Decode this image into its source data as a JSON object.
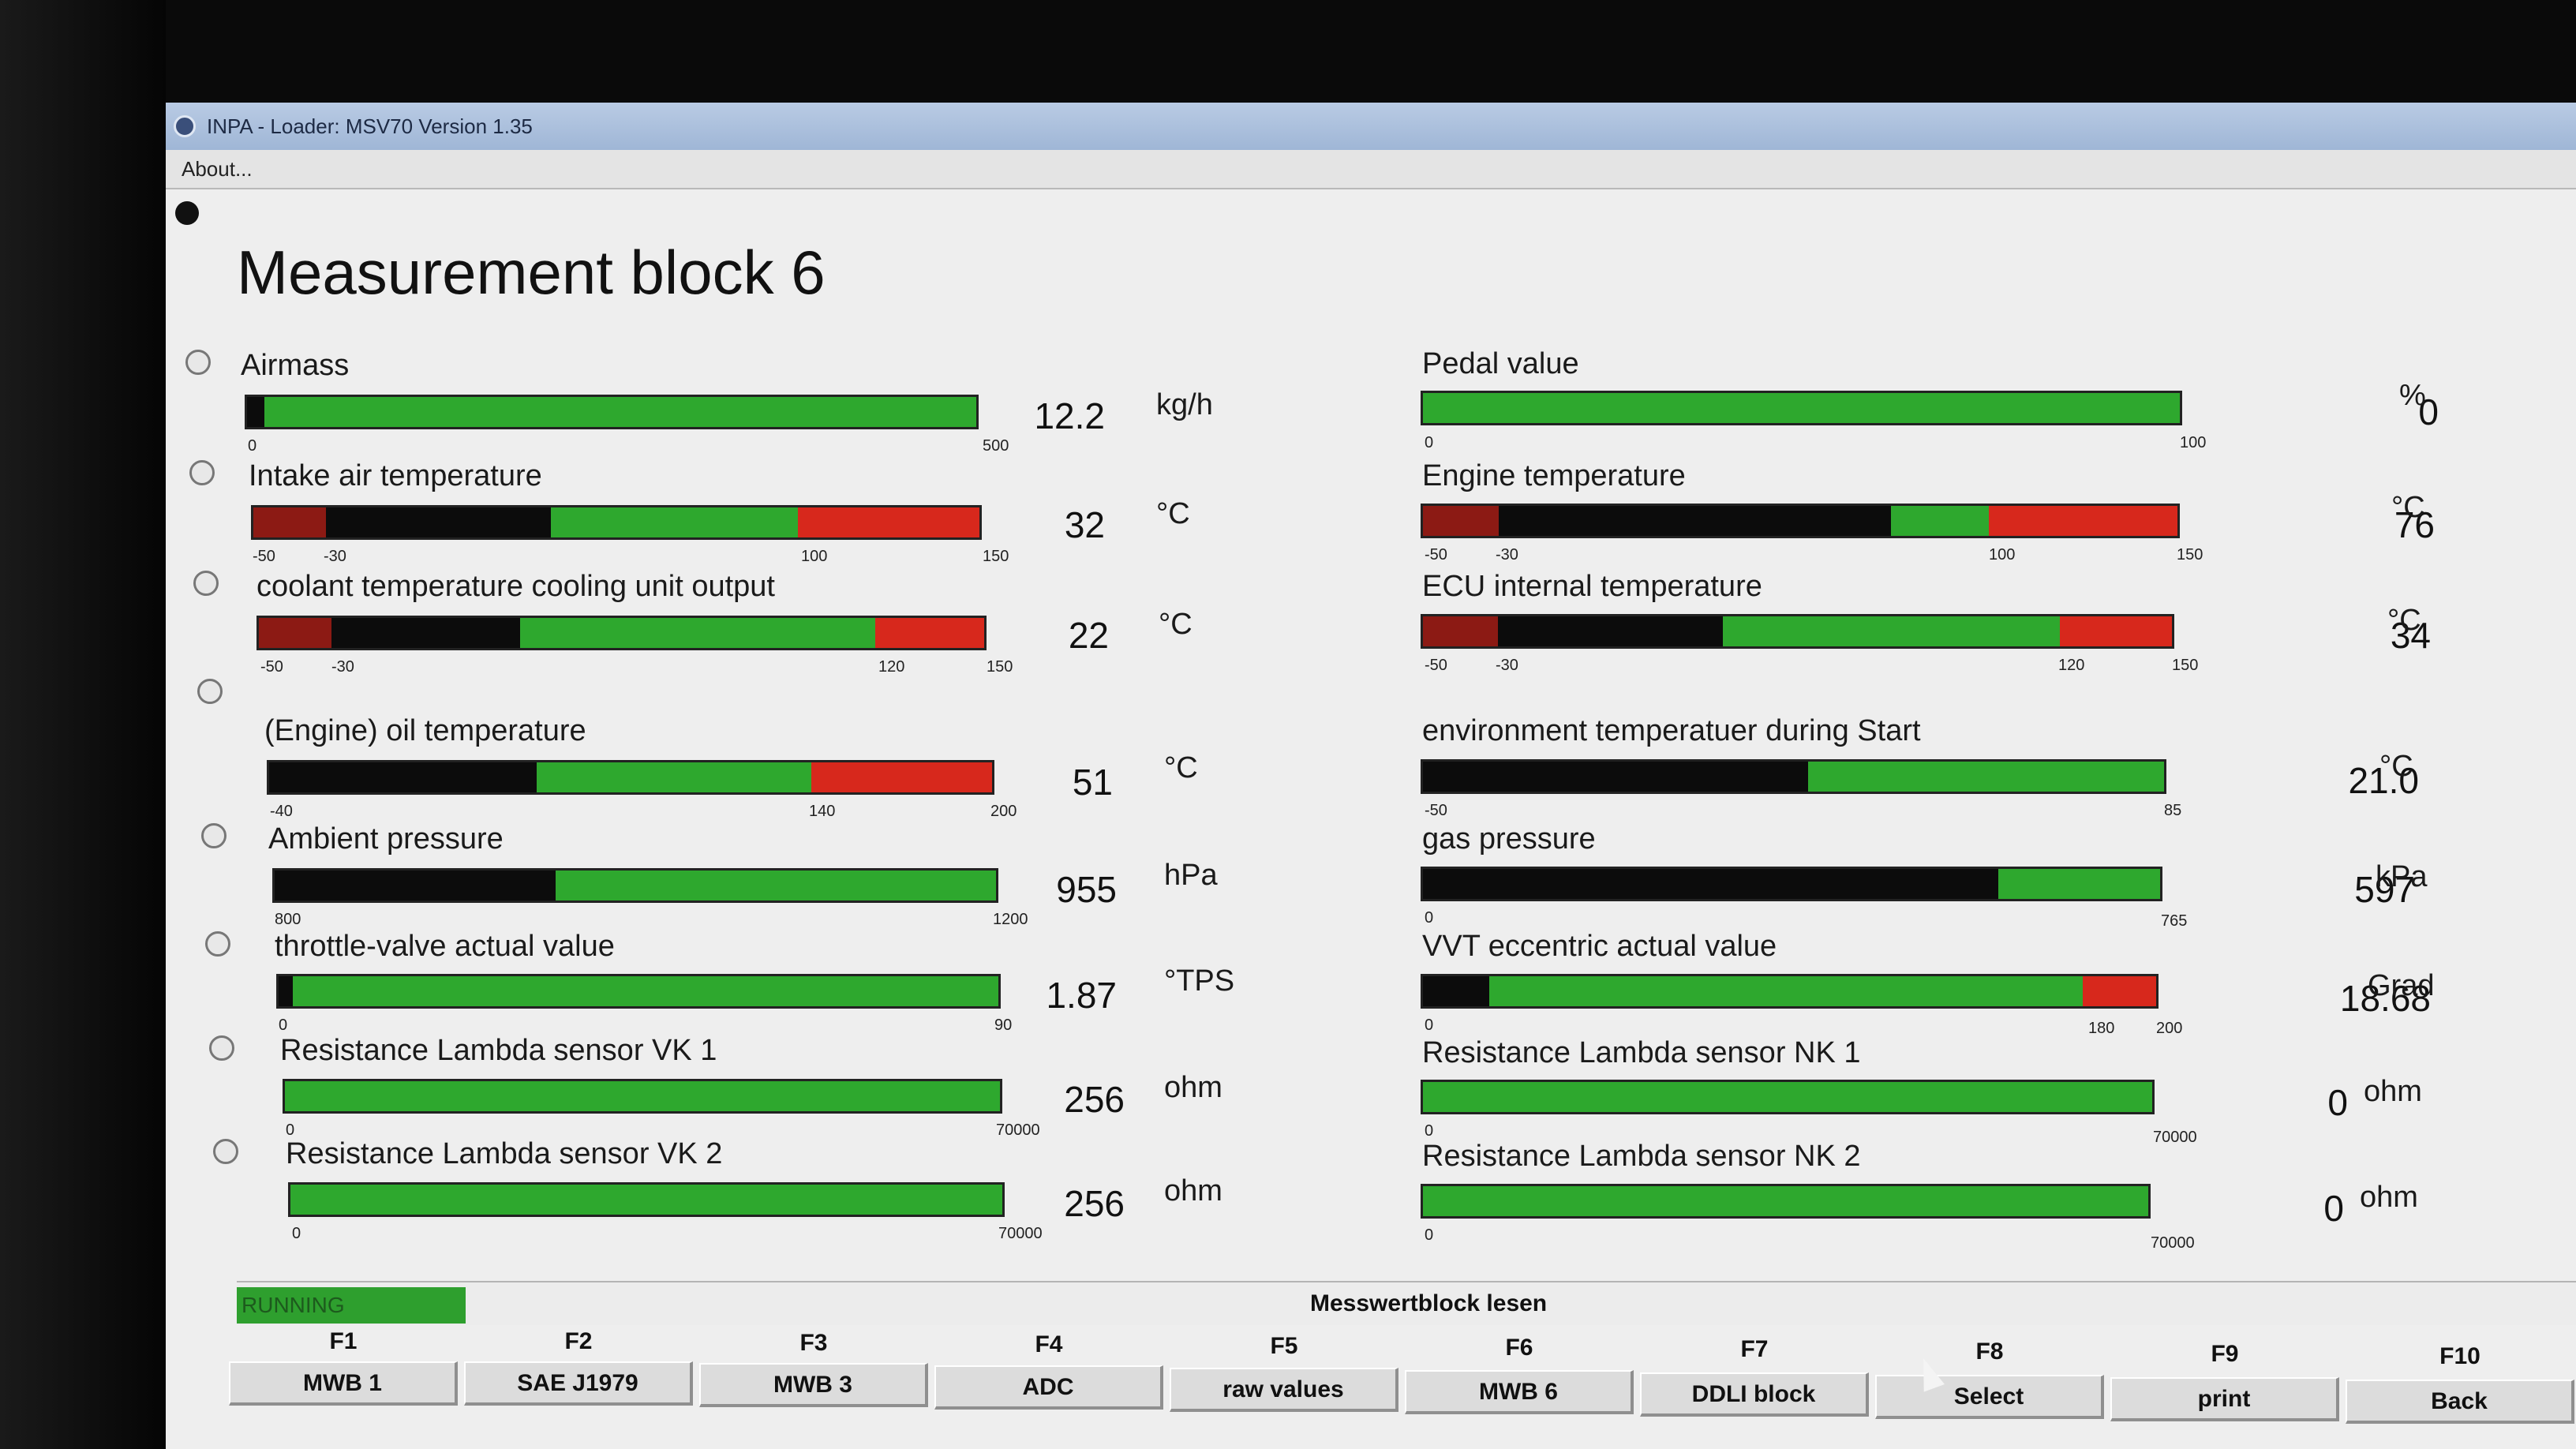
{
  "window": {
    "title": "INPA - Loader: MSV70 Version 1.35",
    "menu_about": "About..."
  },
  "page": {
    "heading": "Measurement block 6"
  },
  "left": [
    {
      "label": "Airmass",
      "value": "12.2",
      "unit": "kg/h",
      "ticks": [
        "0",
        "500"
      ]
    },
    {
      "label": "Intake air temperature",
      "value": "32",
      "unit": "°C",
      "ticks": [
        "-50",
        "-30",
        "100",
        "150"
      ]
    },
    {
      "label": "coolant temperature cooling unit output",
      "value": "22",
      "unit": "°C",
      "ticks": [
        "-50",
        "-30",
        "120",
        "150"
      ]
    },
    {
      "label": "(Engine) oil temperature",
      "value": "51",
      "unit": "°C",
      "ticks": [
        "-40",
        "140",
        "200"
      ]
    },
    {
      "label": "Ambient pressure",
      "value": "955",
      "unit": "hPa",
      "ticks": [
        "800",
        "1200"
      ]
    },
    {
      "label": "throttle-valve actual value",
      "value": "1.87",
      "unit": "°TPS",
      "ticks": [
        "0",
        "90"
      ]
    },
    {
      "label": "Resistance Lambda sensor VK 1",
      "value": "256",
      "unit": "ohm",
      "ticks": [
        "0",
        "70000"
      ]
    },
    {
      "label": "Resistance Lambda sensor VK 2",
      "value": "256",
      "unit": "ohm",
      "ticks": [
        "0",
        "70000"
      ]
    }
  ],
  "right": [
    {
      "label": "Pedal value",
      "value": "0",
      "unit": "%",
      "ticks": [
        "0",
        "100"
      ]
    },
    {
      "label": "Engine temperature",
      "value": "76",
      "unit": "°C",
      "ticks": [
        "-50",
        "-30",
        "100",
        "150"
      ]
    },
    {
      "label": "ECU internal temperature",
      "value": "34",
      "unit": "°C",
      "ticks": [
        "-50",
        "-30",
        "120",
        "150"
      ]
    },
    {
      "label": "environment temperatuer during Start",
      "value": "21.0",
      "unit": "°C",
      "ticks": [
        "-50",
        "85"
      ]
    },
    {
      "label": "gas pressure",
      "value": "597",
      "unit": "kPa",
      "ticks": [
        "0",
        "765"
      ]
    },
    {
      "label": "VVT eccentric actual value",
      "value": "18.68",
      "unit": "Grad",
      "ticks": [
        "0",
        "180",
        "200"
      ]
    },
    {
      "label": "Resistance Lambda sensor NK 1",
      "value": "0",
      "unit": "ohm",
      "ticks": [
        "0",
        "70000"
      ]
    },
    {
      "label": "Resistance Lambda sensor NK 2",
      "value": "0",
      "unit": "ohm",
      "ticks": [
        "0",
        "70000"
      ]
    }
  ],
  "status": {
    "running": "RUNNING",
    "message": "Messwertblock lesen"
  },
  "fkeys": [
    {
      "key": "F1",
      "label": "MWB 1"
    },
    {
      "key": "F2",
      "label": "SAE J1979"
    },
    {
      "key": "F3",
      "label": "MWB 3"
    },
    {
      "key": "F4",
      "label": "ADC"
    },
    {
      "key": "F5",
      "label": "raw values"
    },
    {
      "key": "F6",
      "label": "MWB 6"
    },
    {
      "key": "F7",
      "label": "DDLI block"
    },
    {
      "key": "F8",
      "label": "Select"
    },
    {
      "key": "F9",
      "label": "print"
    },
    {
      "key": "F10",
      "label": "Back"
    }
  ],
  "colors": {
    "ok": "#2ea82e",
    "limit": "#d7281c",
    "fill": "#0c0c0c",
    "background": "#eeeeee"
  }
}
